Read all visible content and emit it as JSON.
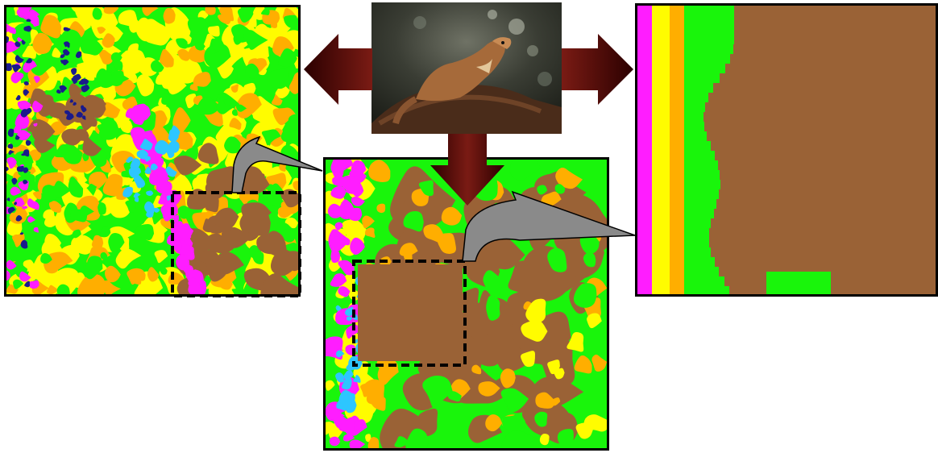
{
  "figure": {
    "photo_subject": "marten-on-log-photo",
    "colors": {
      "brown": "#9a6236",
      "green": "#19f50b",
      "yellow": "#fffc00",
      "orange": "#ffae00",
      "magenta": "#ff1dff",
      "cyan": "#2dc6ff",
      "navy": "#1a1a8c",
      "dark_arrow": "#5a0606",
      "gray_arrow": "#8a8a8a",
      "frame": "#000000"
    },
    "panels": [
      {
        "id": "left",
        "description_key": "fine-segmentation"
      },
      {
        "id": "center",
        "description_key": "medium-segmentation"
      },
      {
        "id": "right",
        "description_key": "coarse-segmentation"
      }
    ]
  }
}
